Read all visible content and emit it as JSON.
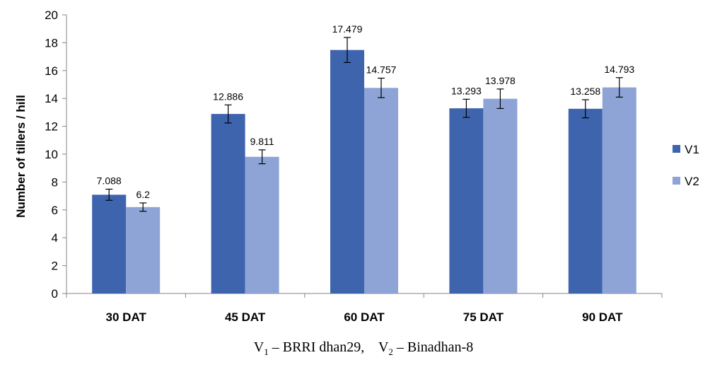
{
  "chart_data": {
    "type": "bar",
    "categories": [
      "30 DAT",
      "45 DAT",
      "60 DAT",
      "75 DAT",
      "90 DAT"
    ],
    "series": [
      {
        "name": "V1",
        "color": "#3e64ae",
        "values": [
          7.088,
          12.886,
          17.479,
          13.293,
          13.258
        ],
        "labels": [
          "7.088",
          "12.886",
          "17.479",
          "13.293",
          "13.258"
        ],
        "error": [
          0.4,
          0.65,
          0.9,
          0.65,
          0.65
        ]
      },
      {
        "name": "V2",
        "color": "#8ea4d7",
        "values": [
          6.2,
          9.811,
          14.757,
          13.978,
          14.793
        ],
        "labels": [
          "6.2",
          "9.811",
          "14.757",
          "13.978",
          "14.793"
        ],
        "error": [
          0.3,
          0.5,
          0.7,
          0.7,
          0.7
        ]
      }
    ],
    "ylabel": "Number of tillers / hill",
    "xlabel": "",
    "ylim": [
      0,
      20
    ],
    "yticks": [
      "0",
      "2",
      "4",
      "6",
      "8",
      "10",
      "12",
      "14",
      "16",
      "18",
      "20"
    ],
    "grid": false,
    "legend_position": "right"
  },
  "caption": {
    "v1_letter": "V",
    "v1_sub": "1",
    "v1_text": " – BRRI dhan29,",
    "v2_letter": "V",
    "v2_sub": "2",
    "v2_text": " – Binadhan-8"
  }
}
